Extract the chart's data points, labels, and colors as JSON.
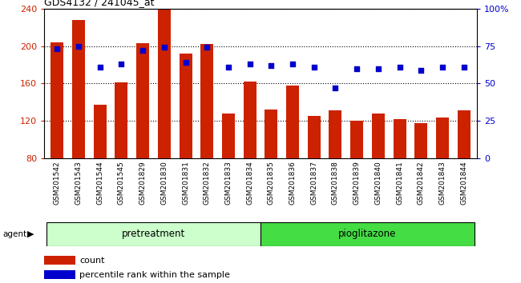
{
  "title": "GDS4132 / 241045_at",
  "categories": [
    "GSM201542",
    "GSM201543",
    "GSM201544",
    "GSM201545",
    "GSM201829",
    "GSM201830",
    "GSM201831",
    "GSM201832",
    "GSM201833",
    "GSM201834",
    "GSM201835",
    "GSM201836",
    "GSM201837",
    "GSM201838",
    "GSM201839",
    "GSM201840",
    "GSM201841",
    "GSM201842",
    "GSM201843",
    "GSM201844"
  ],
  "count_values": [
    204,
    228,
    137,
    161,
    203,
    240,
    192,
    202,
    128,
    162,
    132,
    158,
    125,
    131,
    120,
    128,
    122,
    118,
    124,
    131
  ],
  "percentile_values": [
    73,
    75,
    61,
    63,
    72,
    74,
    64,
    74,
    61,
    63,
    62,
    63,
    61,
    47,
    60,
    60,
    61,
    59,
    61,
    61
  ],
  "bar_color": "#cc2200",
  "scatter_color": "#0000cc",
  "ylim_left": [
    80,
    240
  ],
  "ylim_right": [
    0,
    100
  ],
  "yticks_left": [
    80,
    120,
    160,
    200,
    240
  ],
  "yticks_right": [
    0,
    25,
    50,
    75,
    100
  ],
  "ytick_labels_right": [
    "0",
    "25",
    "50",
    "75",
    "100%"
  ],
  "group_colors": [
    "#ccffcc",
    "#44dd44"
  ],
  "agent_label": "agent",
  "pretreatment_label": "pretreatment",
  "pioglitazone_label": "pioglitazone",
  "legend_count": "count",
  "legend_percentile": "percentile rank within the sample",
  "bar_width": 0.6,
  "n_pretreatment": 10,
  "n_pioglitazone": 10
}
